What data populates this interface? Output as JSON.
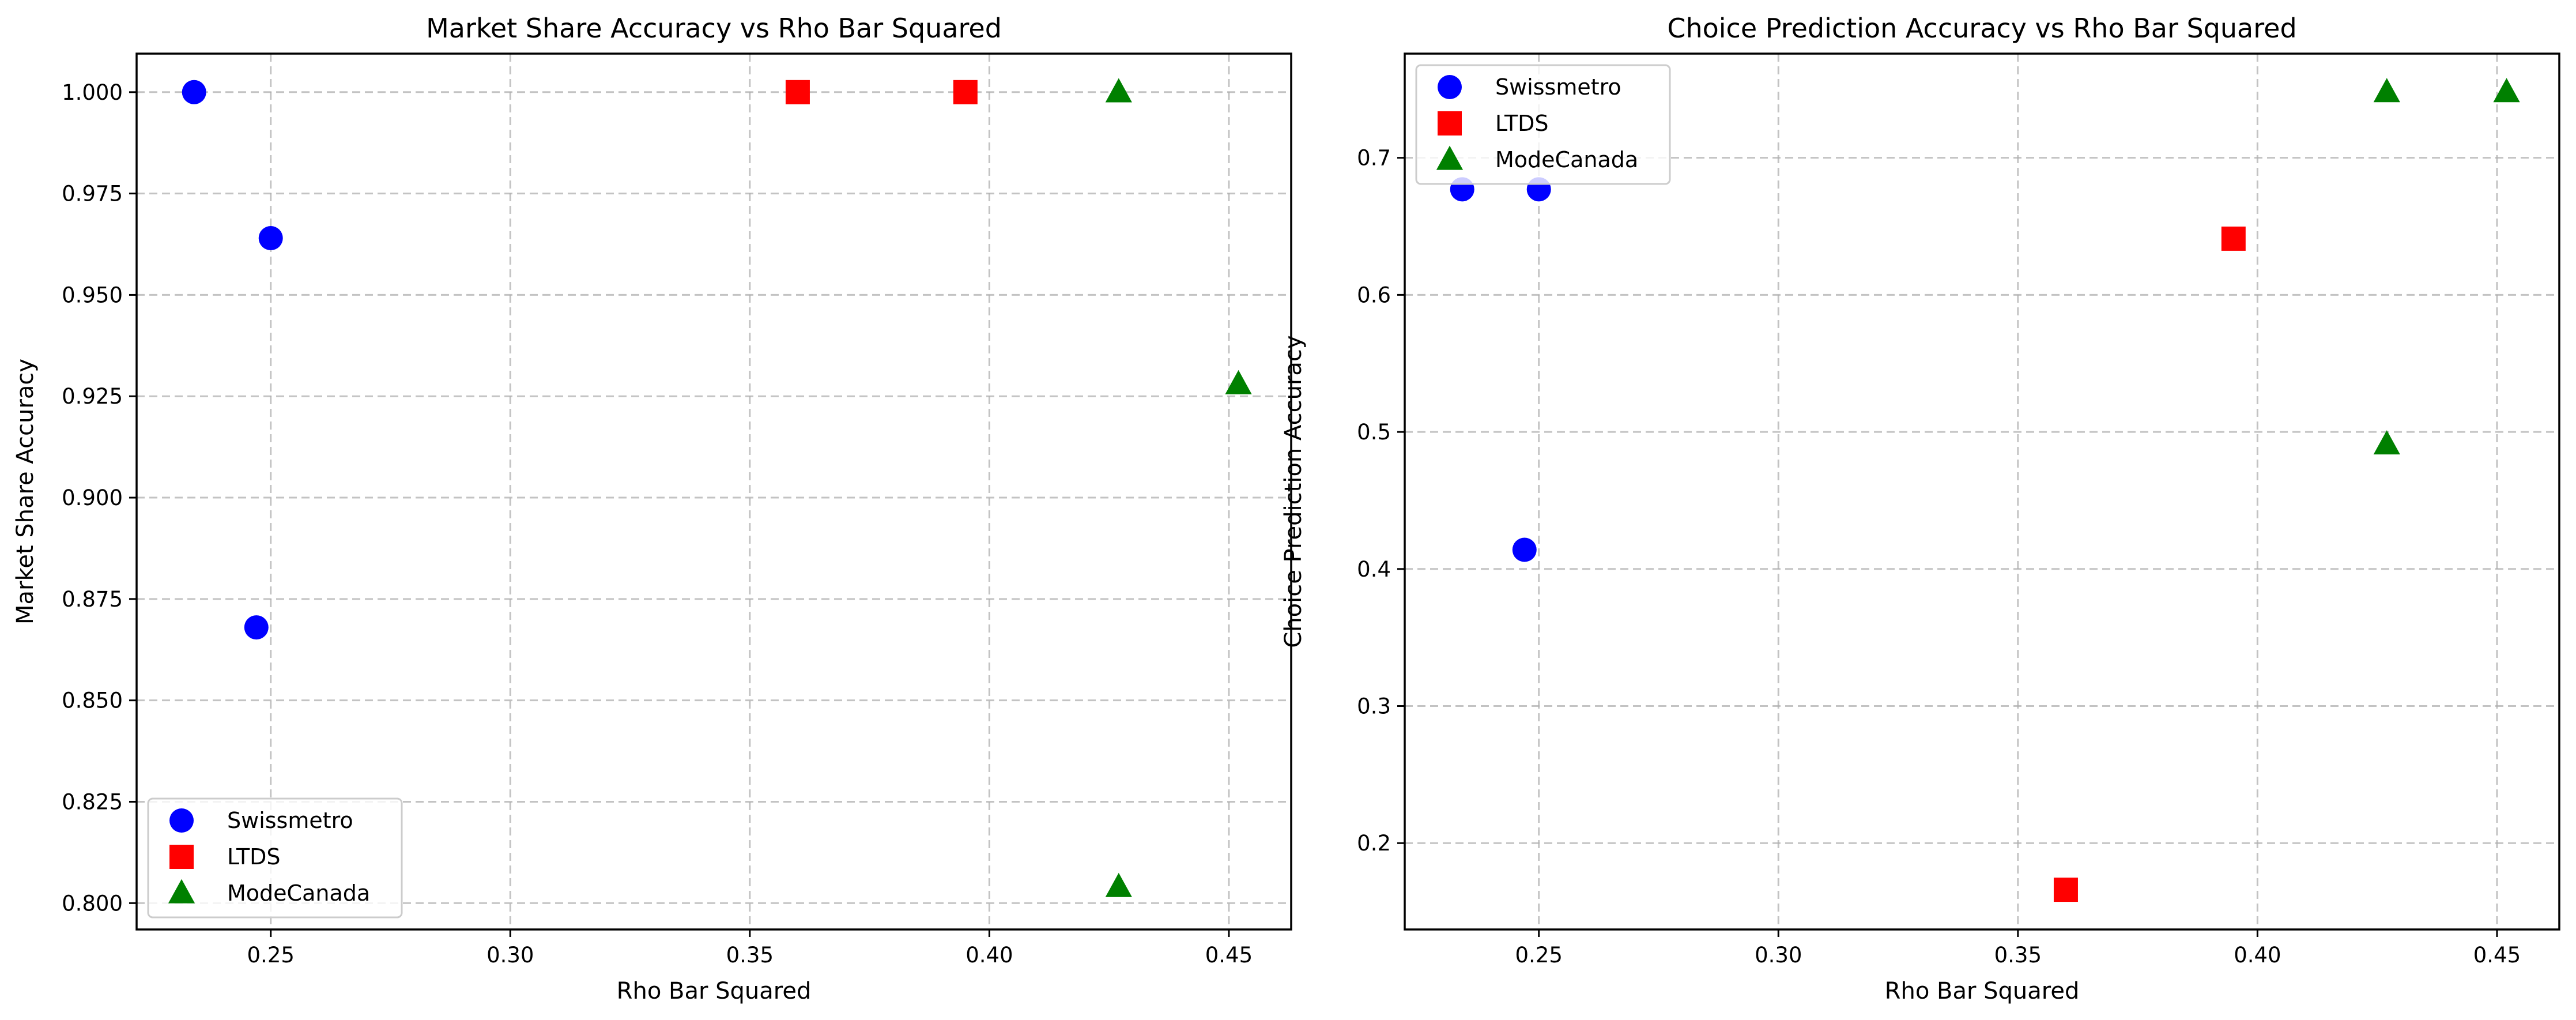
{
  "chart_data": [
    {
      "type": "scatter",
      "title": "Market Share Accuracy vs Rho Bar Squared",
      "xlabel": "Rho Bar Squared",
      "ylabel": "Market Share Accuracy",
      "xlim": [
        0.222,
        0.463
      ],
      "ylim": [
        0.7935,
        1.0095
      ],
      "xticks": [
        0.25,
        0.3,
        0.35,
        0.4,
        0.45
      ],
      "xtick_labels": [
        "0.25",
        "0.30",
        "0.35",
        "0.40",
        "0.45"
      ],
      "yticks": [
        0.8,
        0.825,
        0.85,
        0.875,
        0.9,
        0.925,
        0.95,
        0.975,
        1.0
      ],
      "ytick_labels": [
        "0.800",
        "0.825",
        "0.850",
        "0.875",
        "0.900",
        "0.925",
        "0.950",
        "0.975",
        "1.000"
      ],
      "grid": true,
      "legend_position": "lower-left",
      "series": [
        {
          "name": "Swissmetro",
          "marker": "circle",
          "color": "#0000ff",
          "x": [
            0.234,
            0.25,
            0.247
          ],
          "y": [
            1.0,
            0.964,
            0.868
          ]
        },
        {
          "name": "LTDS",
          "marker": "square",
          "color": "#ff0000",
          "x": [
            0.36,
            0.395
          ],
          "y": [
            1.0,
            1.0
          ]
        },
        {
          "name": "ModeCanada",
          "marker": "triangle",
          "color": "#008000",
          "x": [
            0.427,
            0.452,
            0.427
          ],
          "y": [
            1.0,
            0.928,
            0.804
          ]
        }
      ]
    },
    {
      "type": "scatter",
      "title": "Choice Prediction Accuracy vs Rho Bar Squared",
      "xlabel": "Rho Bar Squared",
      "ylabel": "Choice Prediction Accuracy",
      "xlim": [
        0.222,
        0.463
      ],
      "ylim": [
        0.137,
        0.776
      ],
      "xticks": [
        0.25,
        0.3,
        0.35,
        0.4,
        0.45
      ],
      "xtick_labels": [
        "0.25",
        "0.30",
        "0.35",
        "0.40",
        "0.45"
      ],
      "yticks": [
        0.2,
        0.3,
        0.4,
        0.5,
        0.6,
        0.7
      ],
      "ytick_labels": [
        "0.2",
        "0.3",
        "0.4",
        "0.5",
        "0.6",
        "0.7"
      ],
      "grid": true,
      "legend_position": "upper-left",
      "series": [
        {
          "name": "Swissmetro",
          "marker": "circle",
          "color": "#0000ff",
          "x": [
            0.234,
            0.25,
            0.247
          ],
          "y": [
            0.677,
            0.677,
            0.414
          ]
        },
        {
          "name": "LTDS",
          "marker": "square",
          "color": "#ff0000",
          "x": [
            0.36,
            0.395
          ],
          "y": [
            0.166,
            0.641
          ]
        },
        {
          "name": "ModeCanada",
          "marker": "triangle",
          "color": "#008000",
          "x": [
            0.427,
            0.452,
            0.427
          ],
          "y": [
            0.748,
            0.748,
            0.491
          ]
        }
      ]
    }
  ]
}
